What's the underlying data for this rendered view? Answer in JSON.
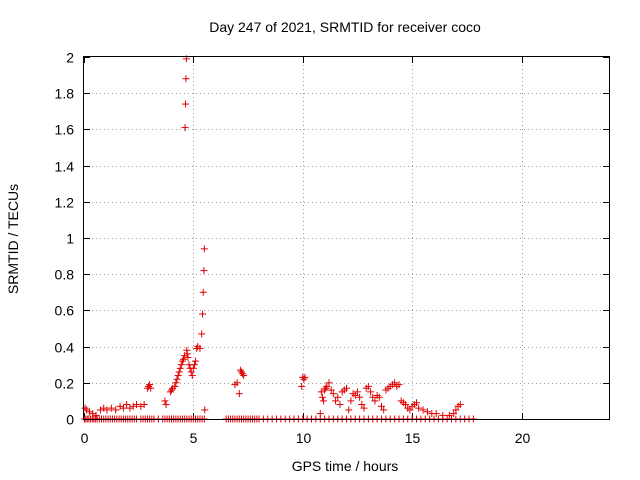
{
  "chart_data": {
    "type": "scatter",
    "title": "Day 247 of 2021, SRMTID for receiver coco",
    "xlabel": "GPS time / hours",
    "ylabel": "SRMTID / TECUs",
    "xlim": [
      0,
      24
    ],
    "ylim": [
      0,
      2
    ],
    "xticks": [
      0,
      5,
      10,
      15,
      20
    ],
    "xtick_labels": [
      "0",
      "5",
      "10",
      "15",
      "20"
    ],
    "yticks": [
      0,
      0.2,
      0.4,
      0.6,
      0.8,
      1,
      1.2,
      1.4,
      1.6,
      1.8,
      2
    ],
    "ytick_labels": [
      "0",
      "0.2",
      "0.4",
      "0.6",
      "0.8",
      "1",
      "1.2",
      "1.4",
      "1.6",
      "1.8",
      "2"
    ],
    "grid": true,
    "marker": "+",
    "marker_color": "#e00000",
    "series": [
      {
        "name": "SRMTID",
        "x": [
          0.02,
          0.08,
          0.15,
          0.22,
          0.3,
          0.38,
          0.45,
          0.52,
          0.6,
          0.7,
          0.8,
          0.9,
          1.0,
          1.1,
          1.2,
          1.3,
          1.4,
          1.5,
          1.6,
          1.7,
          1.8,
          1.9,
          2.0,
          2.1,
          2.2,
          2.3,
          2.4,
          2.6,
          2.7,
          2.8,
          2.9,
          3.0,
          3.1,
          3.2,
          3.4,
          3.6,
          3.7,
          3.8,
          3.9,
          4.0,
          4.1,
          4.2,
          4.3,
          4.4,
          4.5,
          4.6,
          4.7,
          4.8,
          4.9,
          5.0,
          5.1,
          5.2,
          5.3,
          5.4,
          5.5,
          6.5,
          6.6,
          6.7,
          6.8,
          6.9,
          7.0,
          7.1,
          7.2,
          7.3,
          7.4,
          7.5,
          7.6,
          7.7,
          7.8,
          7.9,
          8.0,
          8.2,
          8.4,
          8.6,
          8.8,
          9.0,
          9.2,
          9.4,
          9.6,
          9.8,
          10.0,
          10.2,
          10.4,
          10.6,
          10.8,
          11.0,
          11.2,
          11.4,
          11.6,
          11.8,
          12.0,
          12.2,
          12.4,
          12.6,
          12.8,
          13.0,
          13.2,
          13.4,
          13.6,
          13.8,
          14.0,
          14.2,
          14.4,
          14.6,
          14.8,
          15.0,
          15.2,
          15.4,
          15.6,
          15.8,
          16.0,
          16.2,
          16.4,
          16.6,
          16.8,
          17.0,
          17.2,
          17.4,
          17.6,
          17.8,
          0.05,
          0.12,
          0.25,
          0.4,
          0.55,
          0.75,
          0.9,
          1.05,
          1.25,
          1.45,
          1.65,
          1.8,
          1.95,
          2.1,
          2.25,
          2.4,
          2.6,
          2.75,
          2.9,
          2.95,
          3.0,
          3.05,
          3.7,
          3.75,
          3.95,
          4.0,
          4.05,
          4.15,
          4.2,
          4.25,
          4.3,
          4.35,
          4.4,
          4.45,
          4.5,
          4.55,
          4.6,
          4.62,
          4.64,
          4.66,
          4.68,
          4.7,
          4.72,
          4.75,
          4.8,
          4.85,
          4.9,
          4.95,
          5.0,
          5.05,
          5.1,
          5.15,
          5.2,
          5.3,
          5.38,
          5.42,
          5.45,
          5.48,
          5.5,
          5.52,
          6.9,
          7.0,
          7.1,
          7.15,
          7.2,
          7.25,
          7.3,
          9.95,
          10.0,
          10.05,
          10.1,
          10.8,
          10.85,
          10.9,
          10.95,
          11.0,
          11.05,
          11.1,
          11.2,
          11.3,
          11.4,
          11.5,
          11.6,
          11.7,
          11.8,
          11.9,
          12.0,
          12.1,
          12.2,
          12.3,
          12.4,
          12.5,
          12.6,
          12.7,
          12.8,
          12.9,
          13.0,
          13.1,
          13.2,
          13.3,
          13.4,
          13.5,
          13.6,
          13.7,
          13.8,
          13.9,
          14.0,
          14.1,
          14.2,
          14.3,
          14.4,
          14.5,
          14.6,
          14.7,
          14.8,
          14.9,
          15.0,
          15.1,
          15.2,
          15.3,
          15.5,
          15.7,
          15.9,
          16.1,
          16.4,
          16.7,
          16.9,
          17.0,
          17.1,
          17.2
        ],
        "y": [
          0,
          0,
          0,
          0,
          0,
          0,
          0,
          0,
          0,
          0,
          0,
          0,
          0,
          0,
          0,
          0,
          0,
          0,
          0,
          0,
          0,
          0,
          0,
          0,
          0,
          0,
          0,
          0,
          0,
          0,
          0,
          0,
          0,
          0,
          0,
          0,
          0,
          0,
          0,
          0,
          0,
          0,
          0,
          0,
          0,
          0,
          0,
          0,
          0,
          0,
          0,
          0,
          0,
          0,
          0,
          0,
          0,
          0,
          0,
          0,
          0,
          0,
          0,
          0,
          0,
          0,
          0,
          0,
          0,
          0,
          0,
          0,
          0,
          0,
          0,
          0,
          0,
          0,
          0,
          0,
          0,
          0,
          0,
          0,
          0,
          0,
          0,
          0,
          0,
          0,
          0,
          0,
          0,
          0,
          0,
          0,
          0,
          0,
          0,
          0,
          0,
          0,
          0,
          0,
          0,
          0,
          0,
          0,
          0,
          0,
          0,
          0,
          0,
          0,
          0,
          0,
          0,
          0,
          0,
          0,
          0.06,
          0.05,
          0.04,
          0.03,
          0.02,
          0.05,
          0.06,
          0.05,
          0.06,
          0.05,
          0.07,
          0.06,
          0.08,
          0.06,
          0.07,
          0.08,
          0.07,
          0.08,
          0.17,
          0.18,
          0.19,
          0.17,
          0.1,
          0.08,
          0.15,
          0.16,
          0.17,
          0.18,
          0.2,
          0.22,
          0.24,
          0.26,
          0.28,
          0.3,
          0.32,
          0.33,
          0.35,
          1.61,
          1.74,
          1.88,
          1.99,
          0.38,
          0.36,
          0.34,
          0.3,
          0.28,
          0.26,
          0.24,
          0.28,
          0.3,
          0.32,
          0.39,
          0.4,
          0.39,
          0.47,
          0.58,
          0.7,
          0.82,
          0.94,
          0.05,
          0.19,
          0.2,
          0.14,
          0.27,
          0.26,
          0.25,
          0.24,
          0.18,
          0.23,
          0.22,
          0.23,
          0.03,
          0.15,
          0.12,
          0.1,
          0.16,
          0.17,
          0.18,
          0.2,
          0.16,
          0.14,
          0.1,
          0.12,
          0.08,
          0.15,
          0.16,
          0.17,
          0.05,
          0.1,
          0.14,
          0.13,
          0.15,
          0.12,
          0.08,
          0.06,
          0.17,
          0.18,
          0.15,
          0.12,
          0.1,
          0.13,
          0.12,
          0.07,
          0.05,
          0.16,
          0.17,
          0.18,
          0.19,
          0.2,
          0.18,
          0.19,
          0.1,
          0.09,
          0.08,
          0.06,
          0.05,
          0.07,
          0.08,
          0.09,
          0.06,
          0.05,
          0.04,
          0.03,
          0.03,
          0.02,
          0.02,
          0.03,
          0.05,
          0.07,
          0.08
        ]
      }
    ]
  }
}
